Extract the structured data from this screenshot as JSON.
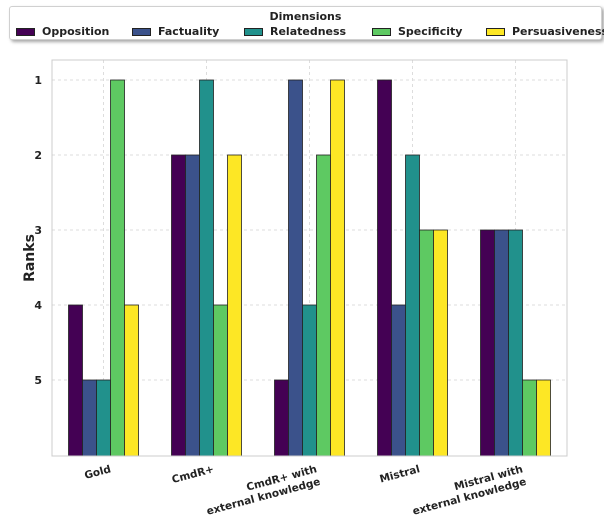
{
  "chart_data": {
    "type": "bar",
    "title": "",
    "xlabel": "",
    "ylabel": "Ranks",
    "y_axis_inverted": true,
    "ylim": [
      1,
      6
    ],
    "yticks": [
      "1",
      "2",
      "3",
      "4",
      "5"
    ],
    "categories": [
      "Gold",
      "CmdR+",
      "CmdR+ with\nexternal knowledge",
      "Mistral",
      "Mistral with\nexternal knowledge"
    ],
    "legend": {
      "title": "Dimensions",
      "placement": "top",
      "ncol": 5
    },
    "grid": true,
    "series": [
      {
        "name": "Opposition",
        "color": "#440154",
        "values": [
          4,
          2,
          5,
          1,
          3
        ]
      },
      {
        "name": "Factuality",
        "color": "#3b528b",
        "values": [
          5,
          2,
          1,
          4,
          3
        ]
      },
      {
        "name": "Relatedness",
        "color": "#21918c",
        "values": [
          5,
          1,
          4,
          2,
          3
        ]
      },
      {
        "name": "Specificity",
        "color": "#5ec962",
        "values": [
          1,
          4,
          2,
          3,
          5
        ]
      },
      {
        "name": "Persuasiveness",
        "color": "#fde725",
        "values": [
          4,
          2,
          1,
          3,
          5
        ]
      }
    ]
  }
}
